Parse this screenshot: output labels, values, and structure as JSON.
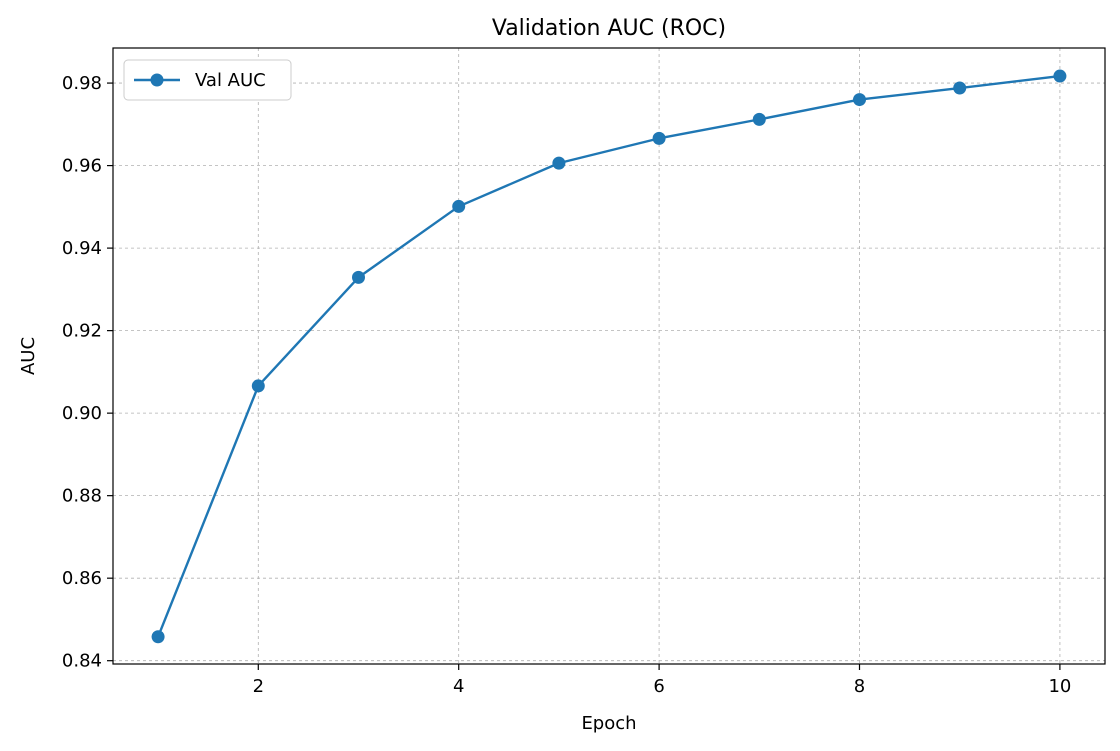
{
  "chart_data": {
    "type": "line",
    "title": "Validation AUC (ROC)",
    "xlabel": "Epoch",
    "ylabel": "AUC",
    "xlim": [
      0.55,
      10.45
    ],
    "ylim": [
      0.8392,
      0.9885
    ],
    "xticks": [
      2,
      4,
      6,
      8,
      10
    ],
    "xtick_labels": [
      "2",
      "4",
      "6",
      "8",
      "10"
    ],
    "yticks": [
      0.84,
      0.86,
      0.88,
      0.9,
      0.92,
      0.94,
      0.96,
      0.98
    ],
    "ytick_labels": [
      "0.84",
      "0.86",
      "0.88",
      "0.90",
      "0.92",
      "0.94",
      "0.96",
      "0.98"
    ],
    "grid": true,
    "legend_position": "top-left",
    "series": [
      {
        "name": "Val AUC",
        "color": "#1f77b4",
        "marker": "circle",
        "x": [
          1,
          2,
          3,
          4,
          5,
          6,
          7,
          8,
          9,
          10
        ],
        "y": [
          0.8458,
          0.9066,
          0.9329,
          0.9501,
          0.9606,
          0.9666,
          0.9712,
          0.976,
          0.9788,
          0.9817
        ]
      }
    ]
  }
}
